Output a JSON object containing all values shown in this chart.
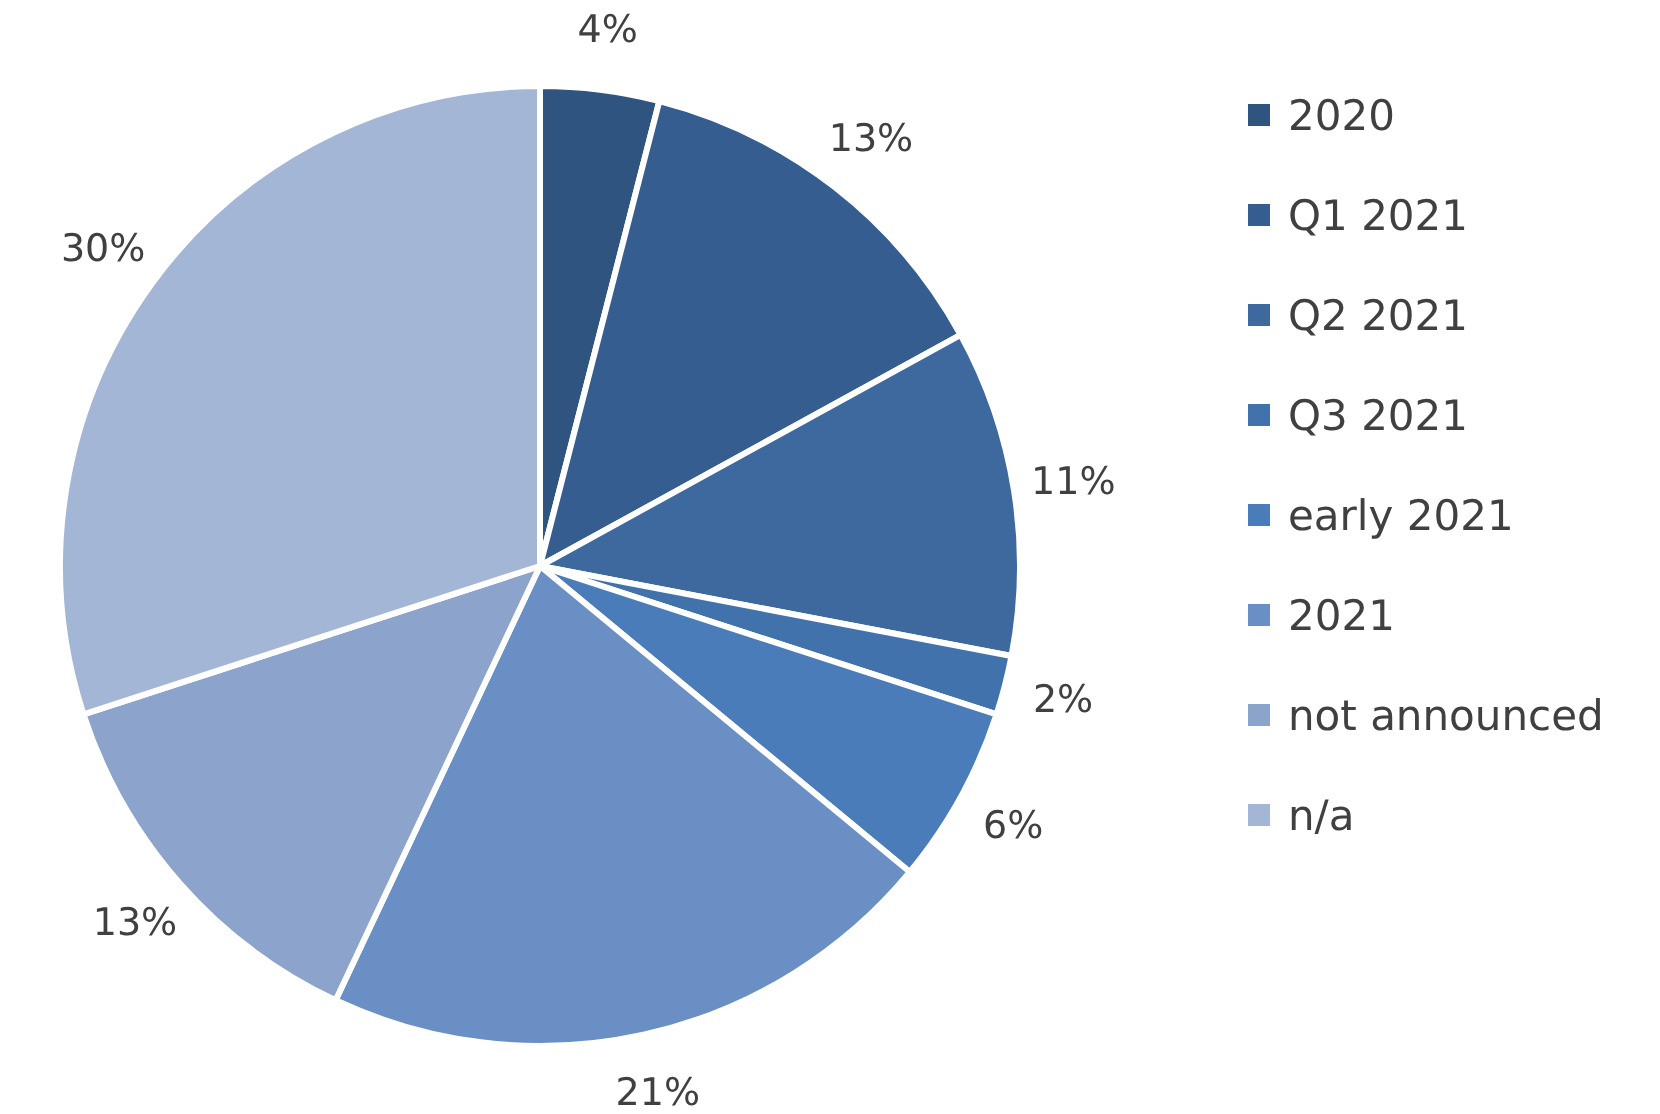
{
  "chart_data": {
    "type": "pie",
    "categories": [
      "2020",
      "Q1 2021",
      "Q2 2021",
      "Q3 2021",
      "early 2021",
      "2021",
      "not announced",
      "n/a"
    ],
    "values": [
      4,
      13,
      11,
      2,
      6,
      21,
      13,
      30
    ],
    "colors": [
      "#2f5480",
      "#365d8f",
      "#3d699e",
      "#4272ab",
      "#4a7cb9",
      "#6a8fc4",
      "#8ca3cb",
      "#a4b6d6"
    ],
    "value_labels": [
      "4%",
      "13%",
      "11%",
      "2%",
      "6%",
      "21%",
      "13%",
      "30%"
    ],
    "legend": "right"
  }
}
